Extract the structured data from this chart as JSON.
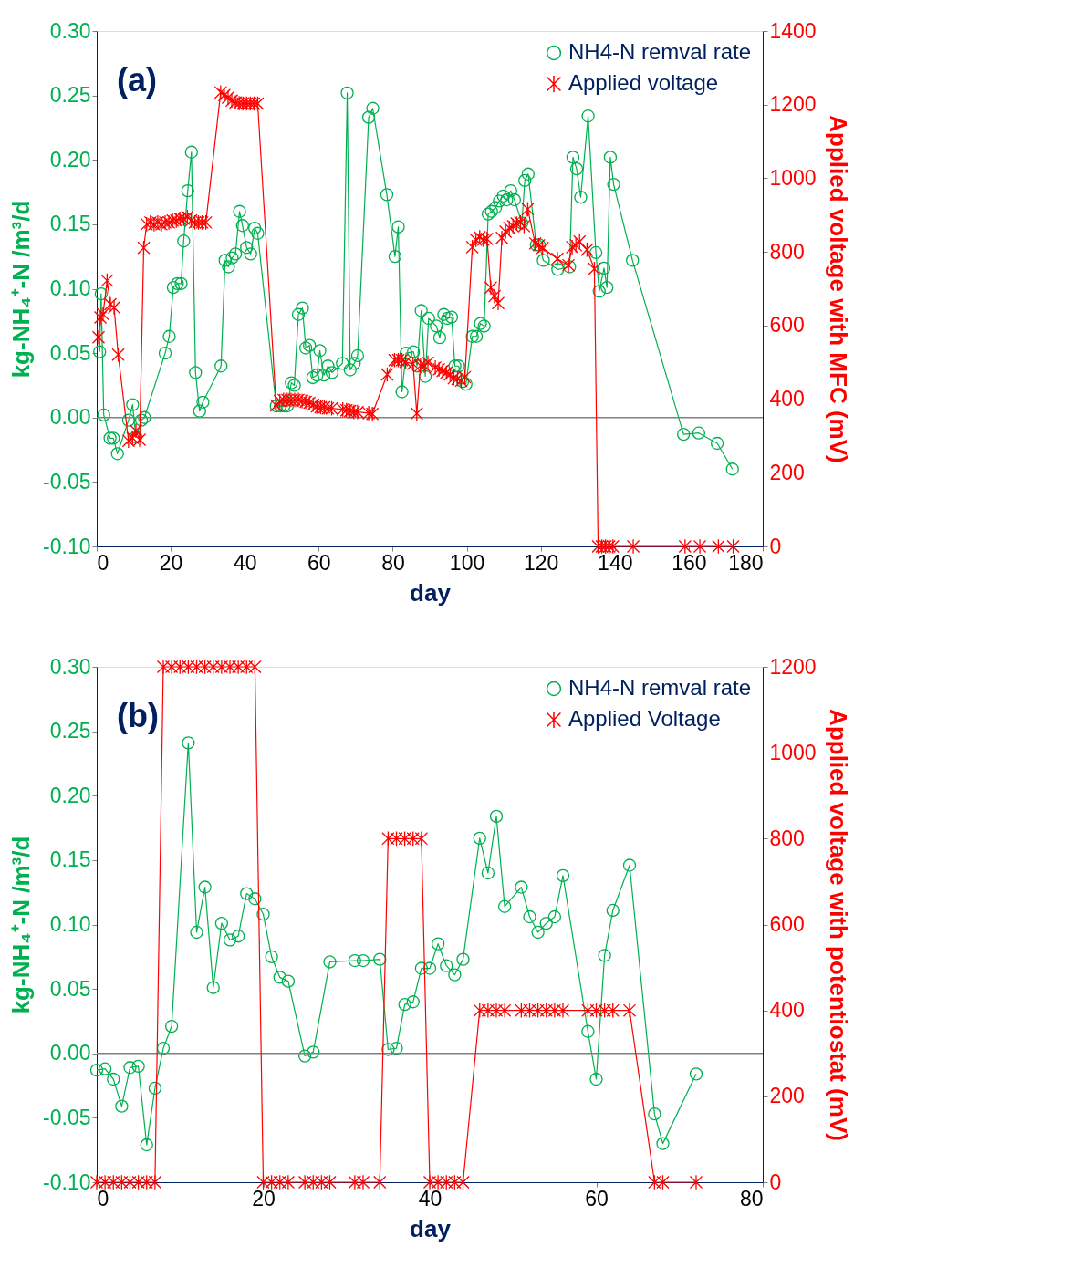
{
  "chart_data": [
    {
      "type": "line",
      "xlabel": "day",
      "ylabel": "kg-NH₄⁺-N /m³/d",
      "y2label": "Applied voltage with MFC (mV)",
      "annotations": [
        "(a)"
      ],
      "legend": "top right",
      "xlim": [
        0,
        180
      ],
      "xticks": [
        0,
        20,
        40,
        60,
        80,
        100,
        120,
        140,
        160,
        180
      ],
      "ylim": [
        -0.1,
        0.3
      ],
      "yticks": [
        {
          "value": -0.1,
          "label": "-0.10"
        },
        -0.05,
        {
          "value": 0,
          "label": "0.00"
        },
        0.05,
        {
          "value": 0.1,
          "label": "0.10"
        },
        0.15,
        {
          "value": 0.2,
          "label": "0.20"
        },
        0.25,
        {
          "value": 0.3,
          "label": "0.30"
        }
      ],
      "y2lim": [
        0,
        1400
      ],
      "y2ticks": [
        0,
        200,
        400,
        600,
        800,
        1000,
        1200,
        1400
      ],
      "ref_lines": [
        {
          "axis": "y",
          "value": 0,
          "color": "#808080"
        }
      ],
      "series": [
        {
          "name": "NH4-N remval rate",
          "color": "#00b050",
          "marker": "circle",
          "x": [
            0.8,
            1.2,
            1.9,
            3.6,
            4.5,
            5.6,
            8.6,
            9.7,
            10.6,
            12.1,
            12.9,
            18.5,
            19.6,
            20.7,
            21.8,
            22.8,
            23.5,
            24.6,
            25.6,
            26.7,
            27.8,
            28.7,
            33.6,
            34.7,
            35.6,
            36.6,
            37.5,
            38.6,
            39.4,
            40.5,
            41.6,
            42.7,
            43.5,
            48.5,
            49.6,
            50.6,
            51.5,
            52.6,
            53.4,
            54.5,
            55.6,
            56.5,
            57.5,
            58.4,
            59.5,
            60.3,
            61.4,
            62.5,
            63.6,
            66.4,
            67.7,
            68.5,
            69.6,
            70.5,
            73.5,
            74.6,
            78.4,
            80.6,
            81.5,
            82.5,
            83.6,
            85.6,
            86.6,
            87.7,
            88.8,
            89.7,
            91.8,
            92.7,
            93.8,
            94.8,
            95.9,
            96.8,
            97.8,
            98.9,
            99.8,
            101.5,
            102.6,
            103.7,
            104.7,
            105.8,
            106.7,
            107.8,
            108.8,
            109.9,
            110.8,
            111.9,
            112.9,
            114.9,
            115.7,
            116.6,
            118.8,
            119.6,
            120.7,
            124.6,
            127.8,
            128.7,
            129.7,
            130.8,
            132.8,
            134.9,
            135.8,
            137.1,
            137.9,
            138.8,
            139.7,
            144.8,
            158.6,
            162.7,
            167.7,
            171.8
          ],
          "values": [
            0.051,
            0.096,
            0.002,
            -0.016,
            -0.016,
            -0.028,
            -0.002,
            0.01,
            -0.015,
            -0.002,
            0.0,
            0.05,
            0.063,
            0.101,
            0.104,
            0.104,
            0.137,
            0.176,
            0.206,
            0.035,
            0.005,
            0.012,
            0.04,
            0.122,
            0.117,
            0.124,
            0.127,
            0.16,
            0.149,
            0.132,
            0.127,
            0.147,
            0.143,
            0.009,
            0.009,
            0.009,
            0.009,
            0.027,
            0.025,
            0.08,
            0.085,
            0.054,
            0.056,
            0.031,
            0.033,
            0.052,
            0.033,
            0.04,
            0.035,
            0.042,
            0.252,
            0.037,
            0.042,
            0.048,
            0.233,
            0.24,
            0.173,
            0.125,
            0.148,
            0.02,
            0.05,
            0.051,
            0.04,
            0.083,
            0.032,
            0.077,
            0.071,
            0.062,
            0.08,
            0.077,
            0.078,
            0.04,
            0.04,
            0.028,
            0.026,
            0.063,
            0.063,
            0.073,
            0.071,
            0.158,
            0.16,
            0.163,
            0.168,
            0.172,
            0.169,
            0.176,
            0.169,
            0.151,
            0.184,
            0.189,
            0.134,
            0.134,
            0.122,
            0.115,
            0.117,
            0.202,
            0.193,
            0.171,
            0.234,
            0.128,
            0.098,
            0.116,
            0.101,
            0.202,
            0.181,
            0.122,
            -0.013,
            -0.012,
            -0.02,
            -0.04
          ]
        },
        {
          "name": "Applied voltage",
          "color": "#ff0000",
          "marker": "cross",
          "axis": "y2",
          "x": [
            0.5,
            1,
            1.7,
            2.8,
            3.7,
            4.7,
            5.8,
            8.6,
            9.7,
            10.6,
            11.6,
            12.7,
            13.5,
            14.5,
            15.5,
            16.5,
            17.5,
            18.5,
            19.5,
            20.5,
            21.5,
            22.5,
            23.5,
            24.5,
            25.5,
            26.5,
            27.5,
            28.5,
            29.5,
            33.5,
            34.5,
            35.5,
            36.5,
            37.5,
            38.5,
            39.5,
            40.5,
            41.5,
            42.5,
            43.5,
            48.5,
            49.5,
            50.5,
            51.5,
            52.5,
            53.5,
            54.5,
            55.5,
            56.5,
            57.5,
            58.5,
            59.5,
            60.5,
            61.5,
            62.5,
            63.5,
            66.5,
            67.5,
            68.5,
            69.5,
            70.5,
            73.5,
            74.5,
            78.5,
            80.5,
            81.5,
            82.5,
            83.5,
            85.5,
            86.5,
            87.5,
            88.5,
            89.5,
            91.5,
            92.5,
            93.5,
            94.5,
            95.5,
            96.5,
            97.5,
            98.5,
            99.5,
            101.5,
            102.5,
            103.5,
            104.5,
            105.5,
            106.5,
            107.5,
            108.5,
            109.5,
            110.5,
            111.5,
            112.5,
            113.5,
            114.5,
            115.5,
            116.5,
            118.5,
            119.5,
            120.5,
            124.5,
            127.5,
            128.5,
            129.5,
            130.5,
            132.5,
            134.5,
            135.5,
            136.5,
            137.5,
            138.5,
            139.5,
            145,
            159,
            163,
            168,
            172
          ],
          "values": [
            568,
            622,
            631,
            722,
            658,
            649,
            521,
            287,
            295,
            314,
            290,
            811,
            875,
            880,
            875,
            880,
            875,
            880,
            880,
            885,
            885,
            890,
            890,
            895,
            885,
            880,
            880,
            880,
            880,
            1233,
            1226,
            1219,
            1211,
            1206,
            1204,
            1203,
            1203,
            1203,
            1203,
            1203,
            383,
            395,
            398,
            398,
            398,
            398,
            398,
            395,
            393,
            390,
            385,
            380,
            378,
            378,
            375,
            375,
            372,
            370,
            368,
            365,
            365,
            362,
            360,
            467,
            506,
            506,
            506,
            501,
            496,
            361,
            491,
            491,
            499,
            486,
            481,
            477,
            472,
            467,
            457,
            455,
            450,
            460,
            813,
            833,
            840,
            833,
            835,
            703,
            680,
            661,
            838,
            855,
            865,
            870,
            877,
            880,
            870,
            916,
            823,
            818,
            811,
            781,
            764,
            813,
            818,
            828,
            806,
            754,
            0,
            0,
            0,
            0,
            0,
            0,
            0,
            0,
            0,
            0
          ]
        }
      ]
    },
    {
      "type": "line",
      "xlabel": "day",
      "ylabel": "kg-NH₄⁺-N /m³/d",
      "y2label": "Applied voltage with potentiostat (mV)",
      "annotations": [
        "(b)"
      ],
      "legend": "top right",
      "xlim": [
        0,
        80
      ],
      "xticks": [
        0,
        20,
        40,
        60,
        80
      ],
      "ylim": [
        -0.1,
        0.3
      ],
      "yticks": [
        {
          "value": -0.1,
          "label": "-0.10"
        },
        -0.05,
        {
          "value": 0,
          "label": "0.00"
        },
        0.05,
        {
          "value": 0.1,
          "label": "0.10"
        },
        0.15,
        {
          "value": 0.2,
          "label": "0.20"
        },
        0.25,
        {
          "value": 0.3,
          "label": "0.30"
        }
      ],
      "y2lim": [
        0,
        1200
      ],
      "y2ticks": [
        0,
        200,
        400,
        600,
        800,
        1000,
        1200
      ],
      "ref_lines": [
        {
          "axis": "y",
          "value": 0,
          "color": "#808080"
        }
      ],
      "series": [
        {
          "name": "NH4-N remval rate",
          "color": "#00b050",
          "marker": "circle",
          "x": [
            0,
            1,
            2,
            3,
            4,
            5,
            6,
            7,
            8,
            9,
            11,
            12,
            13,
            14,
            15,
            16,
            17,
            18,
            19,
            20,
            21,
            22,
            23,
            25,
            26,
            28,
            31,
            32,
            34,
            35,
            36,
            37,
            38,
            39,
            40,
            41,
            42,
            43,
            44,
            46,
            47,
            48,
            49,
            51,
            52,
            53,
            54,
            55,
            56,
            59,
            60,
            61,
            62,
            64,
            67,
            68,
            72
          ],
          "values": [
            -0.013,
            -0.012,
            -0.02,
            -0.041,
            -0.011,
            -0.01,
            -0.071,
            -0.027,
            0.004,
            0.021,
            0.241,
            0.094,
            0.129,
            0.051,
            0.101,
            0.088,
            0.091,
            0.124,
            0.12,
            0.108,
            0.075,
            0.059,
            0.056,
            -0.002,
            0.001,
            0.071,
            0.072,
            0.072,
            0.073,
            0.003,
            0.004,
            0.038,
            0.04,
            0.066,
            0.066,
            0.085,
            0.068,
            0.061,
            0.073,
            0.167,
            0.14,
            0.184,
            0.114,
            0.129,
            0.106,
            0.094,
            0.101,
            0.106,
            0.138,
            0.017,
            -0.02,
            0.076,
            0.111,
            0.146,
            -0.047,
            -0.07,
            -0.016
          ]
        },
        {
          "name": "Applied Voltage",
          "color": "#ff0000",
          "marker": "cross",
          "axis": "y2",
          "x": [
            0,
            1,
            2,
            3,
            4,
            5,
            6,
            7,
            8,
            9,
            10,
            11,
            12,
            13,
            14,
            15,
            16,
            17,
            18,
            19,
            20,
            21,
            22,
            23,
            25,
            26,
            27,
            28,
            31,
            32,
            34,
            35,
            36,
            37,
            38,
            39,
            40,
            41,
            42,
            43,
            44,
            46,
            47,
            48,
            49,
            51,
            52,
            53,
            54,
            55,
            56,
            59,
            60,
            61,
            62,
            64,
            67,
            68,
            72
          ],
          "values": [
            0,
            0,
            0,
            0,
            0,
            0,
            0,
            0,
            1200,
            1200,
            1200,
            1200,
            1200,
            1200,
            1200,
            1200,
            1200,
            1200,
            1200,
            1200,
            0,
            0,
            0,
            0,
            0,
            0,
            0,
            0,
            0,
            0,
            0,
            800,
            800,
            800,
            800,
            800,
            0,
            0,
            0,
            0,
            0,
            400,
            400,
            400,
            400,
            400,
            400,
            400,
            400,
            400,
            400,
            400,
            400,
            400,
            400,
            400,
            0,
            0,
            0
          ]
        }
      ]
    }
  ]
}
